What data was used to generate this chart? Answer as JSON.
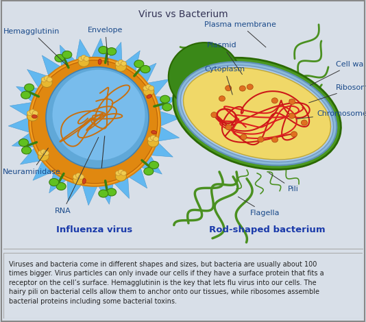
{
  "title": "Virus vs Bacterium",
  "bg_color": "#d8dfe8",
  "text_bg_color": "#f5f5f5",
  "border_color": "#999999",
  "title_color": "#1a1a5e",
  "label_color": "#1a4a8a",
  "virus_label": "Influenza virus",
  "bacterium_label": "Rod-shaped bacterium",
  "description": "Viruses and bacteria come in different shapes and sizes, but bacteria are usually about 100\ntimes bigger. Virus particles can only invade our cells if they have a surface protein that fits a\nreceptor on the cell’s surface. Hemagglutinin is the key that lets flu virus into our cells. The\nhairy pili on bacterial cells allow them to anchor onto our tissues, while ribosomes assemble\nbacterial proteins including some bacterial toxins."
}
